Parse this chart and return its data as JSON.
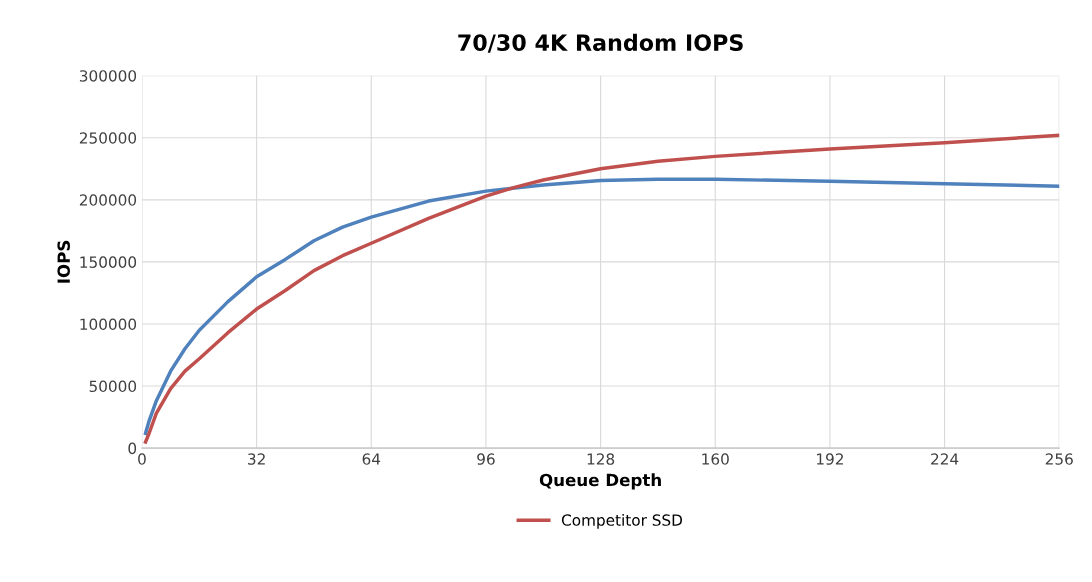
{
  "chart_data": {
    "type": "line",
    "title": "70/30 4K Random IOPS",
    "xlabel": "Queue Depth",
    "ylabel": "IOPS",
    "xlim": [
      0,
      256
    ],
    "xticks": [
      0,
      32,
      64,
      96,
      128,
      160,
      192,
      224,
      256
    ],
    "ylim": [
      0,
      300000
    ],
    "yticks": [
      0,
      50000,
      100000,
      150000,
      200000,
      250000,
      300000
    ],
    "grid": true,
    "legend": "bottom",
    "marker": "none",
    "line_style": "solid",
    "series": [
      {
        "color": "#4f81bd",
        "x": [
          1,
          2,
          4,
          8,
          12,
          16,
          24,
          32,
          40,
          48,
          56,
          64,
          80,
          96,
          112,
          128,
          144,
          160,
          192,
          224,
          256
        ],
        "values": [
          12000,
          22000,
          38000,
          62000,
          80000,
          95000,
          118000,
          138000,
          152000,
          167000,
          178000,
          186000,
          199000,
          207000,
          212000,
          215500,
          216500,
          216500,
          215000,
          213000,
          211000
        ]
      },
      {
        "name": "Competitor SSD",
        "color": "#c0504d",
        "x": [
          1,
          2,
          4,
          8,
          12,
          16,
          24,
          32,
          40,
          48,
          56,
          64,
          80,
          96,
          104,
          112,
          128,
          144,
          160,
          192,
          224,
          256
        ],
        "values": [
          5000,
          12000,
          28000,
          48000,
          62000,
          72000,
          93000,
          112000,
          127000,
          143000,
          155000,
          165000,
          185000,
          203000,
          210000,
          216000,
          225000,
          231000,
          235000,
          241000,
          246000,
          252000
        ]
      }
    ]
  }
}
